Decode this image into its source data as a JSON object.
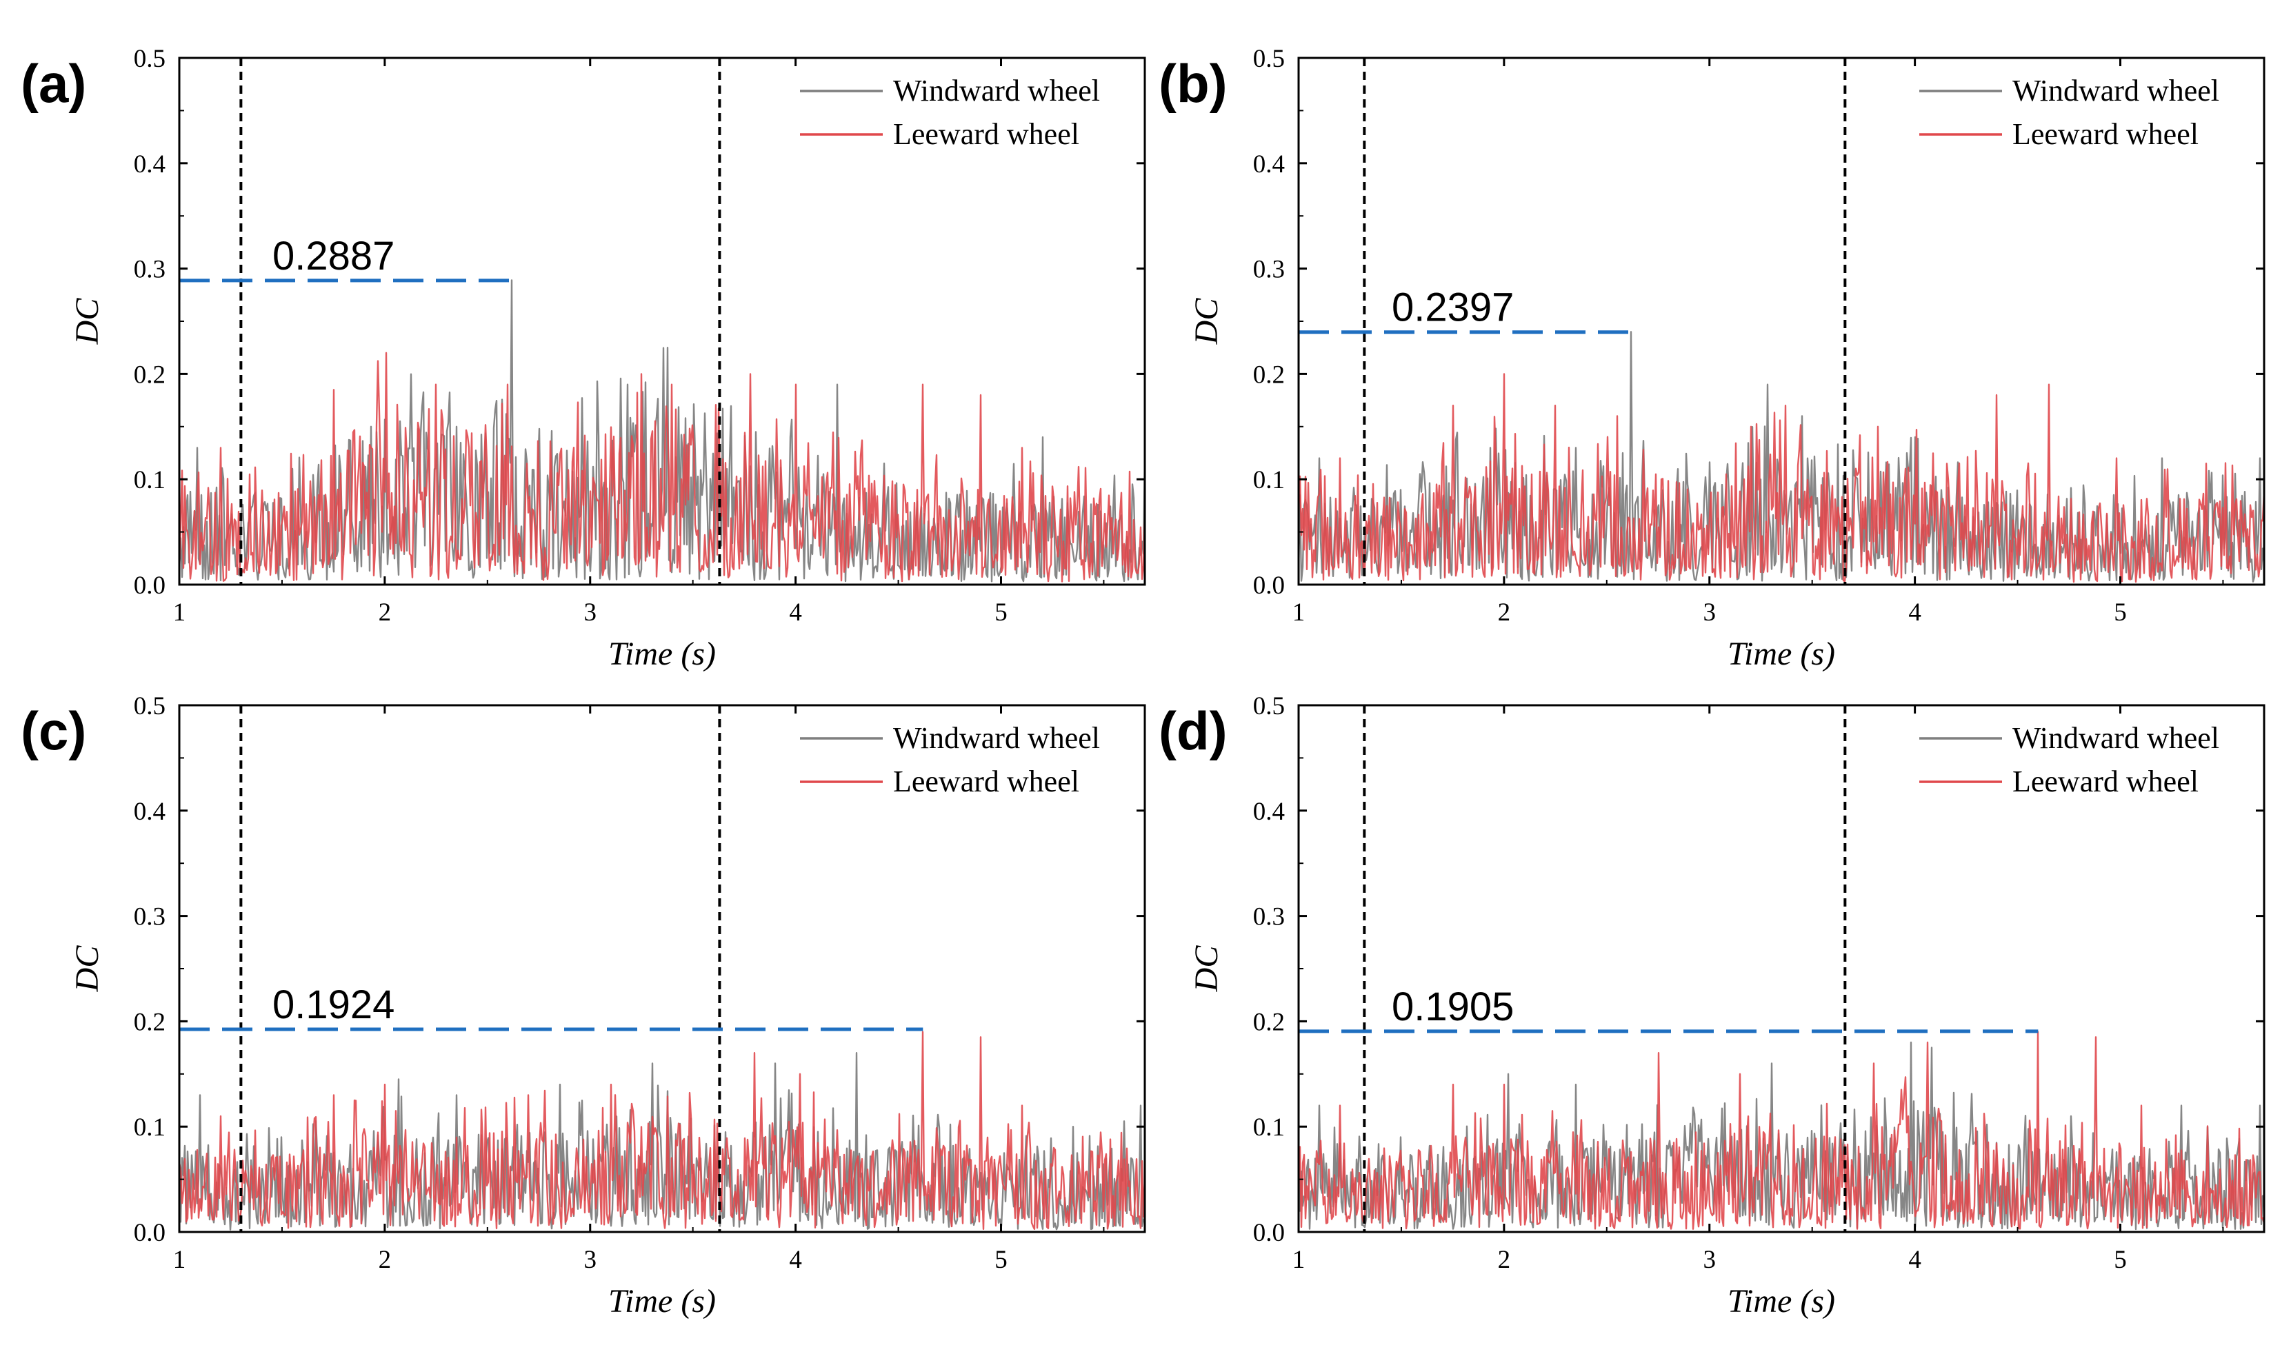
{
  "colors": {
    "windward": "#7f7f7f",
    "leeward": "#e0484c",
    "threshold": "#1f6fc0",
    "marker": "#000000",
    "axis": "#000000"
  },
  "chart_data": [
    {
      "type": "line",
      "panel_label": "(a)",
      "xlabel": "Time (s)",
      "ylabel": "DC",
      "xlim": [
        1,
        5.7
      ],
      "ylim": [
        0,
        0.5
      ],
      "xticks": [
        "1",
        "2",
        "3",
        "4",
        "5"
      ],
      "yticks": [
        "0.0",
        "0.1",
        "0.2",
        "0.3",
        "0.4",
        "0.5"
      ],
      "legend": [
        "Windward wheel",
        "Leeward wheel"
      ],
      "legend_position": "top-right",
      "vertical_markers": [
        1.3,
        3.63
      ],
      "peak": {
        "value": 0.2887,
        "label": "0.2887",
        "time": 2.62
      },
      "envelope": [
        [
          1,
          0.1
        ],
        [
          1.3,
          0.09
        ],
        [
          1.6,
          0.1
        ],
        [
          1.8,
          0.14
        ],
        [
          2.0,
          0.17
        ],
        [
          2.3,
          0.15
        ],
        [
          2.6,
          0.14
        ],
        [
          2.9,
          0.13
        ],
        [
          3.2,
          0.16
        ],
        [
          3.4,
          0.18
        ],
        [
          3.63,
          0.13
        ],
        [
          3.9,
          0.12
        ],
        [
          4.4,
          0.1
        ],
        [
          5.0,
          0.09
        ],
        [
          5.7,
          0.09
        ]
      ],
      "series": [
        {
          "name": "Windward wheel",
          "color_key": "windward",
          "spikes": [
            [
              1.09,
              0.13
            ],
            [
              1.55,
              0.11
            ],
            [
              1.93,
              0.15
            ],
            [
              2.35,
              0.15
            ],
            [
              2.62,
              0.289
            ],
            [
              3.18,
              0.19
            ],
            [
              3.38,
              0.225
            ],
            [
              4.2,
              0.19
            ],
            [
              5.2,
              0.14
            ],
            [
              5.7,
              0.12
            ]
          ]
        },
        {
          "name": "Leeward wheel",
          "color_key": "leeward",
          "spikes": [
            [
              1.2,
              0.13
            ],
            [
              1.75,
              0.185
            ],
            [
              2.01,
              0.22
            ],
            [
              2.25,
              0.19
            ],
            [
              2.6,
              0.19
            ],
            [
              3.25,
              0.2
            ],
            [
              3.4,
              0.19
            ],
            [
              3.78,
              0.2
            ],
            [
              4.0,
              0.19
            ],
            [
              4.62,
              0.19
            ],
            [
              4.9,
              0.18
            ],
            [
              5.1,
              0.13
            ]
          ]
        }
      ]
    },
    {
      "type": "line",
      "panel_label": "(b)",
      "xlabel": "Time (s)",
      "ylabel": "DC",
      "xlim": [
        1,
        5.7
      ],
      "ylim": [
        0,
        0.5
      ],
      "xticks": [
        "1",
        "2",
        "3",
        "4",
        "5"
      ],
      "yticks": [
        "0.0",
        "0.1",
        "0.2",
        "0.3",
        "0.4",
        "0.5"
      ],
      "legend": [
        "Windward wheel",
        "Leeward wheel"
      ],
      "legend_position": "top-right",
      "vertical_markers": [
        1.32,
        3.66
      ],
      "peak": {
        "value": 0.2397,
        "label": "0.2397",
        "time": 2.62
      },
      "envelope": [
        [
          1,
          0.09
        ],
        [
          1.3,
          0.08
        ],
        [
          1.6,
          0.09
        ],
        [
          1.8,
          0.11
        ],
        [
          2.0,
          0.13
        ],
        [
          2.3,
          0.11
        ],
        [
          2.6,
          0.11
        ],
        [
          2.9,
          0.1
        ],
        [
          3.2,
          0.12
        ],
        [
          3.4,
          0.13
        ],
        [
          3.66,
          0.1
        ],
        [
          3.9,
          0.12
        ],
        [
          4.4,
          0.09
        ],
        [
          5.0,
          0.08
        ],
        [
          5.7,
          0.09
        ]
      ],
      "series": [
        {
          "name": "Windward wheel",
          "color_key": "windward",
          "spikes": [
            [
              1.1,
              0.12
            ],
            [
              1.5,
              0.09
            ],
            [
              1.93,
              0.13
            ],
            [
              2.35,
              0.13
            ],
            [
              2.62,
              0.24
            ],
            [
              3.28,
              0.19
            ],
            [
              3.45,
              0.16
            ],
            [
              4.0,
              0.14
            ],
            [
              5.2,
              0.12
            ],
            [
              5.68,
              0.12
            ]
          ]
        },
        {
          "name": "Leeward wheel",
          "color_key": "leeward",
          "spikes": [
            [
              1.2,
              0.12
            ],
            [
              1.75,
              0.17
            ],
            [
              2.0,
              0.2
            ],
            [
              2.25,
              0.17
            ],
            [
              2.55,
              0.16
            ],
            [
              3.2,
              0.15
            ],
            [
              3.37,
              0.17
            ],
            [
              3.82,
              0.15
            ],
            [
              4.4,
              0.18
            ],
            [
              4.65,
              0.19
            ],
            [
              4.98,
              0.12
            ]
          ]
        }
      ]
    },
    {
      "type": "line",
      "panel_label": "(c)",
      "xlabel": "Time (s)",
      "ylabel": "DC",
      "xlim": [
        1,
        5.7
      ],
      "ylim": [
        0,
        0.5
      ],
      "xticks": [
        "1",
        "2",
        "3",
        "4",
        "5"
      ],
      "yticks": [
        "0.0",
        "0.1",
        "0.2",
        "0.3",
        "0.4",
        "0.5"
      ],
      "legend": [
        "Windward wheel",
        "Leeward wheel"
      ],
      "legend_position": "top-right",
      "vertical_markers": [
        1.3,
        3.63
      ],
      "peak": {
        "value": 0.1924,
        "label": "0.1924",
        "time": 4.62
      },
      "envelope": [
        [
          1,
          0.08
        ],
        [
          1.3,
          0.07
        ],
        [
          1.6,
          0.08
        ],
        [
          1.8,
          0.09
        ],
        [
          2.0,
          0.1
        ],
        [
          2.3,
          0.09
        ],
        [
          2.6,
          0.1
        ],
        [
          2.9,
          0.1
        ],
        [
          3.2,
          0.11
        ],
        [
          3.4,
          0.11
        ],
        [
          3.63,
          0.08
        ],
        [
          3.9,
          0.11
        ],
        [
          4.4,
          0.09
        ],
        [
          5.0,
          0.08
        ],
        [
          5.7,
          0.08
        ]
      ],
      "series": [
        {
          "name": "Windward wheel",
          "color_key": "windward",
          "spikes": [
            [
              1.1,
              0.13
            ],
            [
              1.5,
              0.09
            ],
            [
              2.07,
              0.145
            ],
            [
              2.35,
              0.13
            ],
            [
              2.85,
              0.14
            ],
            [
              3.3,
              0.16
            ],
            [
              3.9,
              0.16
            ],
            [
              4.3,
              0.17
            ],
            [
              5.35,
              0.1
            ],
            [
              5.68,
              0.12
            ]
          ]
        },
        {
          "name": "Leeward wheel",
          "color_key": "leeward",
          "spikes": [
            [
              1.2,
              0.11
            ],
            [
              1.75,
              0.13
            ],
            [
              2.0,
              0.14
            ],
            [
              2.7,
              0.13
            ],
            [
              3.1,
              0.14
            ],
            [
              3.8,
              0.17
            ],
            [
              4.02,
              0.15
            ],
            [
              4.62,
              0.19
            ],
            [
              4.9,
              0.185
            ],
            [
              5.1,
              0.12
            ]
          ]
        }
      ]
    },
    {
      "type": "line",
      "panel_label": "(d)",
      "xlabel": "Time (s)",
      "ylabel": "DC",
      "xlim": [
        1,
        5.7
      ],
      "ylim": [
        0,
        0.5
      ],
      "xticks": [
        "1",
        "2",
        "3",
        "4",
        "5"
      ],
      "yticks": [
        "0.0",
        "0.1",
        "0.2",
        "0.3",
        "0.4",
        "0.5"
      ],
      "legend": [
        "Windward wheel",
        "Leeward wheel"
      ],
      "legend_position": "top-right",
      "vertical_markers": [
        1.32,
        3.66
      ],
      "peak": {
        "value": 0.1905,
        "label": "0.1905",
        "time": 4.6
      },
      "envelope": [
        [
          1,
          0.08
        ],
        [
          1.3,
          0.07
        ],
        [
          1.6,
          0.08
        ],
        [
          1.8,
          0.09
        ],
        [
          2.0,
          0.09
        ],
        [
          2.3,
          0.09
        ],
        [
          2.6,
          0.09
        ],
        [
          2.9,
          0.09
        ],
        [
          3.2,
          0.1
        ],
        [
          3.4,
          0.1
        ],
        [
          3.66,
          0.09
        ],
        [
          3.9,
          0.11
        ],
        [
          4.1,
          0.12
        ],
        [
          4.4,
          0.09
        ],
        [
          5.0,
          0.08
        ],
        [
          5.7,
          0.08
        ]
      ],
      "series": [
        {
          "name": "Windward wheel",
          "color_key": "windward",
          "spikes": [
            [
              1.1,
              0.12
            ],
            [
              1.5,
              0.09
            ],
            [
              2.02,
              0.15
            ],
            [
              2.35,
              0.14
            ],
            [
              3.3,
              0.16
            ],
            [
              3.98,
              0.18
            ],
            [
              4.08,
              0.175
            ],
            [
              5.3,
              0.12
            ],
            [
              5.68,
              0.12
            ]
          ]
        },
        {
          "name": "Leeward wheel",
          "color_key": "leeward",
          "spikes": [
            [
              1.2,
              0.12
            ],
            [
              1.75,
              0.14
            ],
            [
              2.0,
              0.14
            ],
            [
              2.75,
              0.17
            ],
            [
              3.15,
              0.15
            ],
            [
              3.8,
              0.16
            ],
            [
              4.06,
              0.18
            ],
            [
              4.6,
              0.19
            ],
            [
              4.88,
              0.185
            ],
            [
              5.1,
              0.12
            ]
          ]
        }
      ]
    }
  ]
}
